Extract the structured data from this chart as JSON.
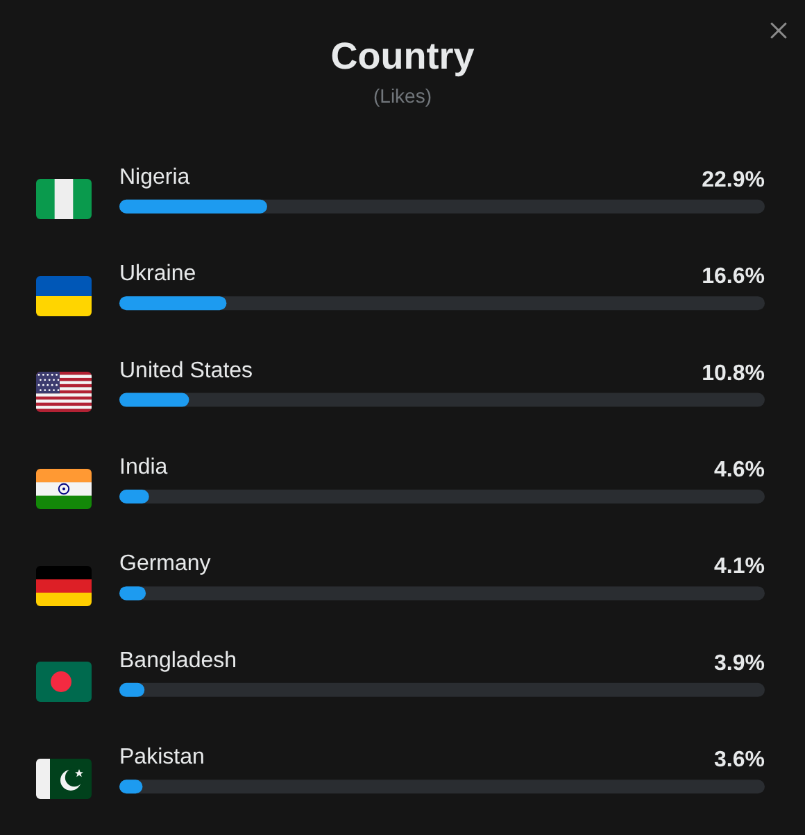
{
  "chart_data": {
    "type": "bar",
    "orientation": "horizontal",
    "title": "Country",
    "subtitle": "(Likes)",
    "categories": [
      "Nigeria",
      "Ukraine",
      "United States",
      "India",
      "Germany",
      "Bangladesh",
      "Pakistan"
    ],
    "values": [
      22.9,
      16.6,
      10.8,
      4.6,
      4.1,
      3.9,
      3.6
    ],
    "value_labels": [
      "22.9%",
      "16.6%",
      "10.8%",
      "4.6%",
      "4.1%",
      "3.9%",
      "3.6%"
    ],
    "color": "#1d9bf0",
    "xlim": [
      0,
      100
    ],
    "tick_labels": "y"
  }
}
